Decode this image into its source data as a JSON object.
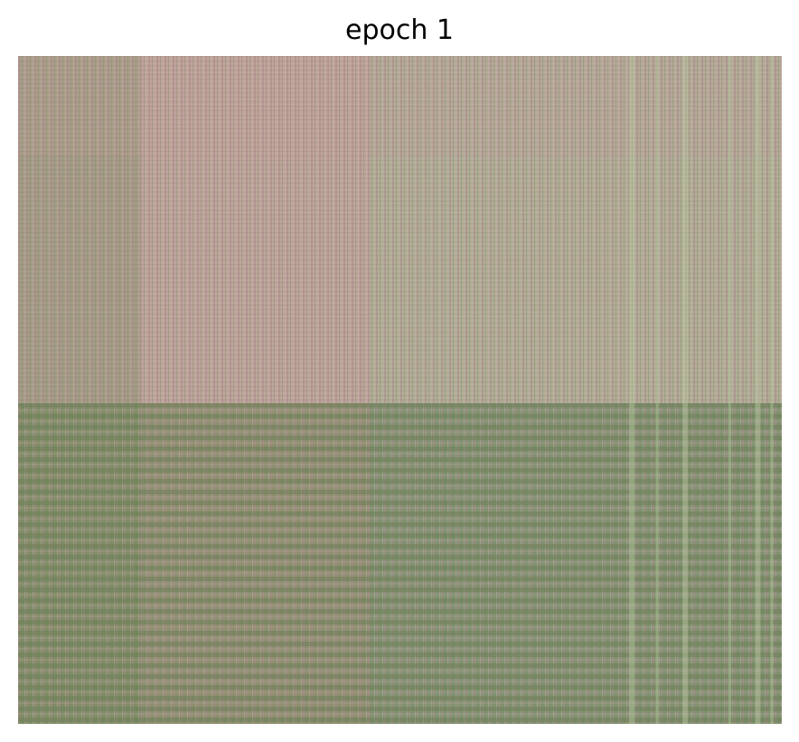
{
  "chart_data": {
    "type": "heatmap",
    "title": "epoch 1",
    "xlabel": "",
    "ylabel": "",
    "axes_visible": false,
    "grid": false,
    "legend": "none",
    "colors": {
      "pink": "#c2a19b",
      "green": "#7a8a62",
      "light_green": "#b8c9a0",
      "tan": "#aa9c86"
    },
    "column_blocks": [
      {
        "name": "block-1",
        "fraction": 0.16,
        "tone": "tan-green"
      },
      {
        "name": "block-2",
        "fraction": 0.3,
        "tone": "pink"
      },
      {
        "name": "block-3",
        "fraction": 0.54,
        "tone": "green"
      }
    ],
    "row_blocks": [
      {
        "name": "upper",
        "fraction": 0.52,
        "pattern": "fine-rows"
      },
      {
        "name": "lower",
        "fraction": 0.48,
        "pattern": "banded-rows"
      }
    ]
  }
}
